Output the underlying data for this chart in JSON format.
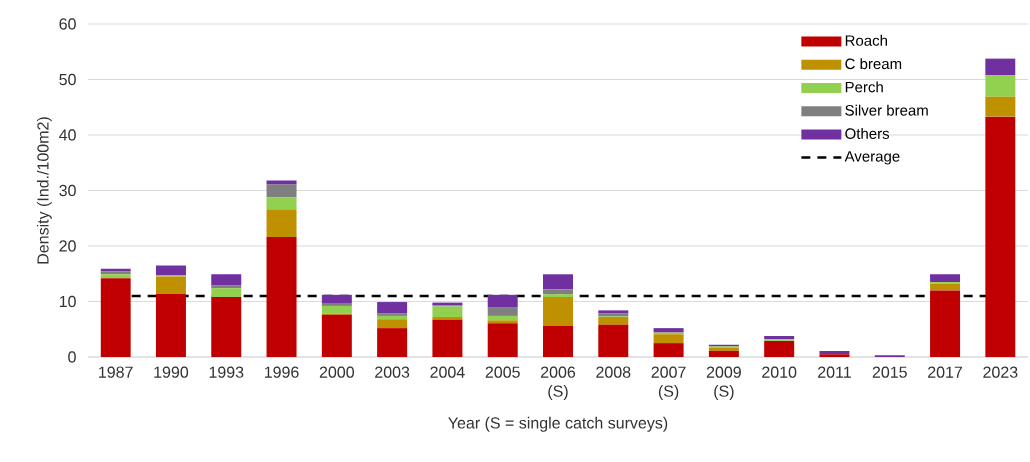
{
  "chart_data": {
    "type": "bar",
    "stacked": true,
    "xlabel": "Year (S = single catch surveys)",
    "ylabel": "Density (Ind./100m2)",
    "categories": [
      "1987",
      "1990",
      "1993",
      "1996",
      "2000",
      "2003",
      "2004",
      "2005",
      "2006 (S)",
      "2008",
      "2007 (S)",
      "2009 (S)",
      "2010",
      "2011",
      "2015",
      "2017",
      "2023"
    ],
    "series": [
      {
        "name": "Roach",
        "color": "#c00000",
        "values": [
          14.2,
          11.4,
          10.8,
          21.6,
          7.6,
          5.2,
          6.7,
          6.1,
          5.6,
          5.8,
          2.5,
          1.1,
          2.9,
          0.5,
          0,
          12.0,
          43.3
        ]
      },
      {
        "name": "C bream",
        "color": "#bf9000",
        "values": [
          0,
          3.1,
          0,
          5.0,
          0.2,
          1.6,
          0.5,
          0.5,
          5.2,
          1.4,
          1.6,
          0.6,
          0,
          0,
          0,
          1.2,
          3.6
        ]
      },
      {
        "name": "Perch",
        "color": "#92d050",
        "values": [
          0.7,
          0.2,
          1.6,
          2.2,
          1.4,
          0.6,
          1.9,
          0.8,
          0.5,
          0.1,
          0.3,
          0.2,
          0.3,
          0,
          0,
          0.3,
          3.9
        ]
      },
      {
        "name": "Silver bream",
        "color": "#7f7f7f",
        "values": [
          0.5,
          0,
          0.5,
          2.3,
          0.4,
          0.5,
          0.2,
          1.6,
          0.9,
          0.6,
          null,
          null,
          null,
          0,
          0,
          0,
          0
        ]
      },
      {
        "name": "Others",
        "color": "#7030a0",
        "values": [
          0.5,
          1.8,
          2.0,
          0.7,
          1.6,
          2.0,
          0.5,
          2.2,
          2.7,
          0.5,
          0.8,
          0.3,
          0.6,
          0.6,
          0.3,
          1.4,
          3.0
        ]
      }
    ],
    "ref_lines": [
      {
        "axis": "y",
        "value": 11,
        "label": "Average",
        "color": "#000000",
        "line_style": "dashed"
      }
    ],
    "ylim": [
      0,
      60
    ],
    "yticks": [
      0,
      10,
      20,
      30,
      40,
      50,
      60
    ],
    "grid": "y",
    "legend": "top right"
  }
}
